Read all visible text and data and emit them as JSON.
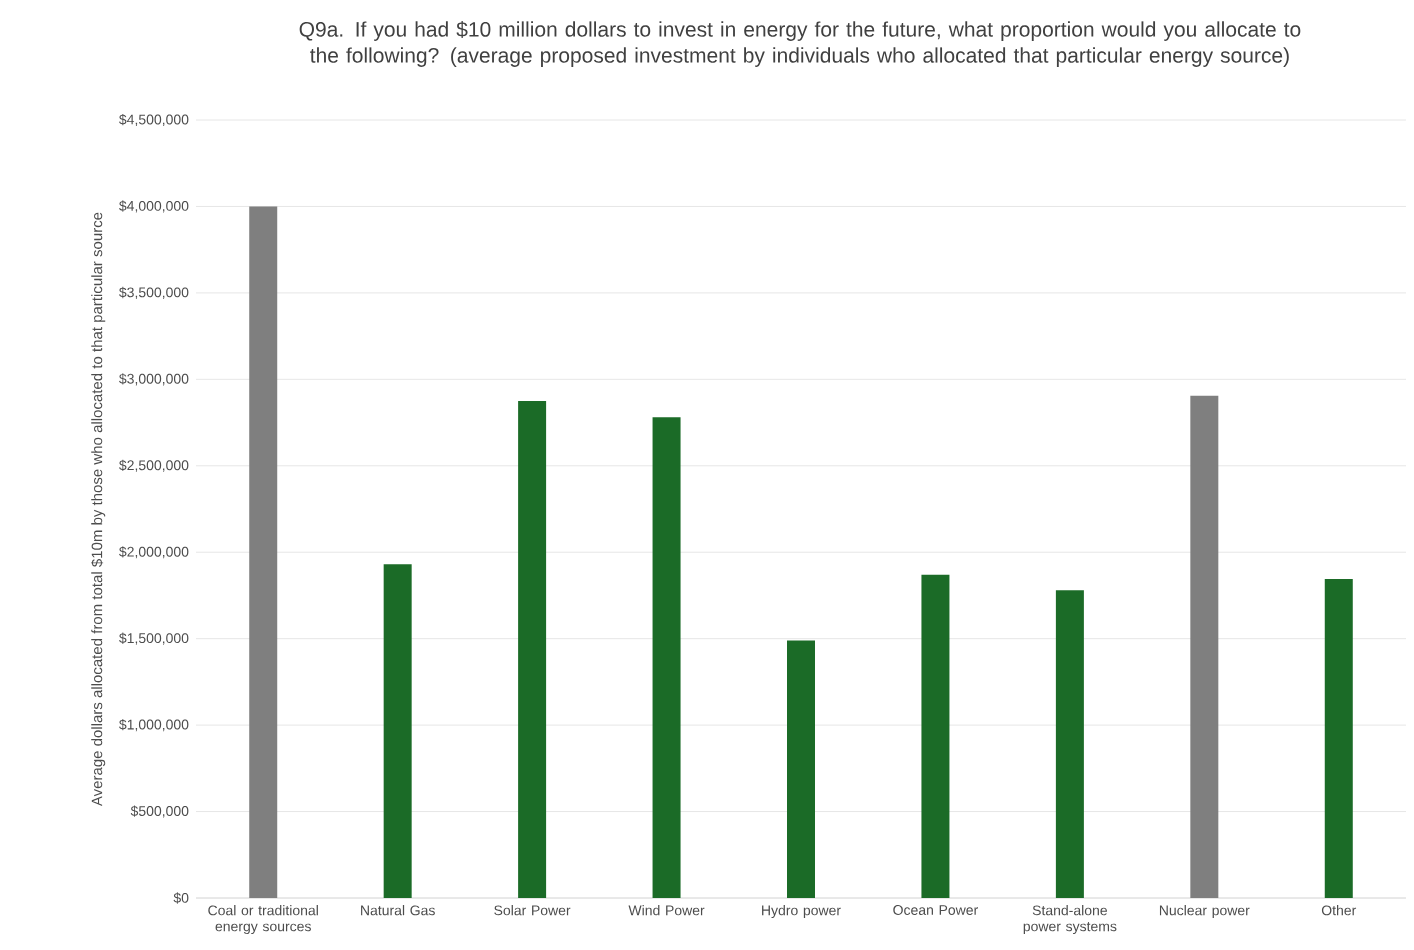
{
  "chart_data": {
    "type": "bar",
    "title": "Q9a. If you had $10 million dollars to invest in energy for the future, what proportion would you allocate to the following?  (average proposed investment by individuals who allocated that particular energy source)",
    "ylabel": "Average dollars allocated from total $10m by those who allocated to that particular source",
    "categories": [
      "Coal or traditional energy sources",
      "Natural Gas",
      "Solar Power",
      "Wind Power",
      "Hydro power",
      "Ocean Power",
      "Stand-alone power systems",
      "Nuclear power",
      "Other"
    ],
    "values": [
      4000000,
      1930000,
      2875000,
      2780000,
      1490000,
      1870000,
      1780000,
      2905000,
      1845000
    ],
    "colors": [
      "#7f7f7f",
      "#1b6b27",
      "#1b6b27",
      "#1b6b27",
      "#1b6b27",
      "#1b6b27",
      "#1b6b27",
      "#7f7f7f",
      "#1b6b27"
    ],
    "ylim": [
      0,
      4500000
    ],
    "yticks": [
      {
        "value": 0,
        "label": "$0"
      },
      {
        "value": 500000,
        "label": "$500,000"
      },
      {
        "value": 1000000,
        "label": "$1,000,000"
      },
      {
        "value": 1500000,
        "label": "$1,500,000"
      },
      {
        "value": 2000000,
        "label": "$2,000,000"
      },
      {
        "value": 2500000,
        "label": "$2,500,000"
      },
      {
        "value": 3000000,
        "label": "$3,000,000"
      },
      {
        "value": 3500000,
        "label": "$3,500,000"
      },
      {
        "value": 4000000,
        "label": "$4,000,000"
      },
      {
        "value": 4500000,
        "label": "$4,500,000"
      }
    ],
    "grid": "y"
  }
}
